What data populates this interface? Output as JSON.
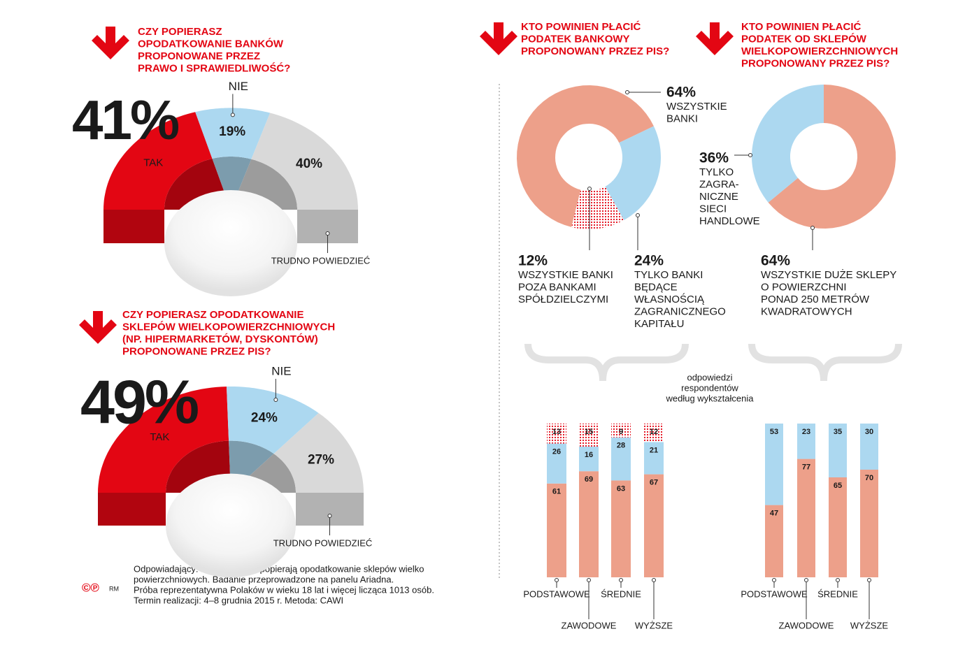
{
  "chart_data": [
    {
      "type": "semi-donut",
      "title": [
        "CZY POPIERASZ",
        "OPODATKOWANIE BANKÓW",
        "PROPONOWANE PRZEZ",
        "PRAWO I SPRAWIEDLIWOŚĆ?"
      ],
      "categories": [
        "TAK",
        "NIE",
        "TRUDNO POWIEDZIEĆ"
      ],
      "values": [
        41,
        19,
        40
      ],
      "value_labels": [
        "41%",
        "19%",
        "40%"
      ],
      "colors": [
        "#e30613",
        "#acd8f0",
        "#d9d9d9"
      ]
    },
    {
      "type": "semi-donut",
      "title": [
        "CZY POPIERASZ OPODATKOWANIE",
        "SKLEPÓW WIELKOPOWIERZCHNIOWYCH",
        "(NP. HIPERMARKETÓW, DYSKONTÓW)",
        "PROPONOWANE PRZEZ PIS?"
      ],
      "categories": [
        "TAK",
        "NIE",
        "TRUDNO POWIEDZIEĆ"
      ],
      "values": [
        49,
        24,
        27
      ],
      "value_labels": [
        "49%",
        "24%",
        "27%"
      ],
      "colors": [
        "#e30613",
        "#acd8f0",
        "#d9d9d9"
      ]
    },
    {
      "type": "donut",
      "title": [
        "KTO POWINIEN PŁACIĆ",
        "PODATEK BANKOWY",
        "PROPONOWANY PRZEZ PIS?"
      ],
      "categories": [
        [
          "WSZYSTKIE",
          "BANKI"
        ],
        [
          "TYLKO BANKI",
          "BĘDĄCE",
          "WŁASNOŚCIĄ",
          "ZAGRANICZNEGO",
          "KAPITAŁU"
        ],
        [
          "WSZYSTKIE BANKI",
          "POZA BANKAMI",
          "SPÓŁDZIELCZYMI"
        ]
      ],
      "values": [
        64,
        24,
        12
      ],
      "value_labels": [
        "64%",
        "24%",
        "12%"
      ],
      "colors": [
        "#eda08a",
        "#acd8f0",
        "#e30613"
      ],
      "patterns": [
        "solid",
        "solid",
        "dots"
      ]
    },
    {
      "type": "donut",
      "title": [
        "KTO POWINIEN PŁACIĆ",
        "PODATEK OD SKLEPÓW",
        "WIELKOPOWIERZCHNIOWYCH",
        "PROPONOWANY PRZEZ PIS?"
      ],
      "categories": [
        [
          "WSZYSTKIE DUŻE SKLEPY",
          "O POWIERZCHNI",
          "PONAD 250 METRÓW",
          "KWADRATOWYCH"
        ],
        [
          "TYLKO",
          "ZAGRA-",
          "NICZNE",
          "SIECI",
          "HANDLOWE"
        ]
      ],
      "values": [
        64,
        36
      ],
      "value_labels": [
        "64%",
        "36%"
      ],
      "colors": [
        "#eda08a",
        "#acd8f0"
      ],
      "patterns": [
        "solid",
        "solid"
      ]
    },
    {
      "type": "stacked-bar",
      "categories": [
        "PODSTAWOWE",
        "ZAWODOWE",
        "ŚREDNIE",
        "WYŻSZE"
      ],
      "series": [
        {
          "color": "#eda08a",
          "pattern": "solid",
          "values": [
            61,
            69,
            63,
            67
          ]
        },
        {
          "color": "#acd8f0",
          "pattern": "solid",
          "values": [
            26,
            16,
            28,
            21
          ]
        },
        {
          "color": "#e30613",
          "pattern": "dots",
          "values": [
            13,
            15,
            9,
            12
          ]
        }
      ]
    },
    {
      "type": "stacked-bar",
      "categories": [
        "PODSTAWOWE",
        "ZAWODOWE",
        "ŚREDNIE",
        "WYŻSZE"
      ],
      "series": [
        {
          "color": "#eda08a",
          "pattern": "solid",
          "values": [
            47,
            77,
            65,
            70
          ]
        },
        {
          "color": "#acd8f0",
          "pattern": "solid",
          "values": [
            53,
            23,
            35,
            30
          ]
        }
      ]
    }
  ],
  "annotation": [
    "odpowiedzi",
    "respondentów",
    "według wykształcenia"
  ],
  "footnote": [
    "Odpowiadający: badani, którzy popierają opodatkowanie sklepów wielko",
    "powierzchniowych. Badanie przeprowadzone na panelu Ariadna.",
    "Próba reprezentatywna Polaków w wieku 18 lat i więcej licząca 1013 osób.",
    "Termin realizacji: 4–8 grudnia 2015 r. Metoda: CAWI"
  ],
  "logo": [
    "©℗",
    "RM"
  ]
}
